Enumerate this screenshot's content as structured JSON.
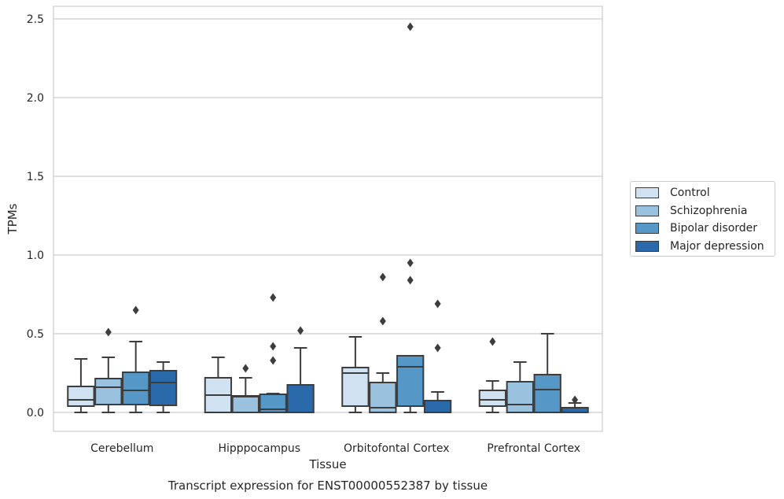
{
  "chart_data": {
    "type": "box",
    "title": "Transcript expression for ENST00000552387 by tissue",
    "xlabel": "Tissue",
    "ylabel": "TPMs",
    "ylim": [
      -0.12,
      2.58
    ],
    "yticks": [
      "0.0",
      "0.5",
      "1.0",
      "1.5",
      "2.0",
      "2.5"
    ],
    "ytick_values": [
      0,
      0.5,
      1.0,
      1.5,
      2.0,
      2.5
    ],
    "categories": [
      "Cerebellum",
      "Hipppocampus",
      "Orbitofontal Cortex",
      "Prefrontal Cortex"
    ],
    "grid": true,
    "legend_position": "right",
    "series": [
      {
        "name": "Control",
        "color": "#d0e1f2",
        "boxes": [
          {
            "min": 0.0,
            "q1": 0.04,
            "median": 0.08,
            "q3": 0.165,
            "max": 0.34,
            "outliers": []
          },
          {
            "min": 0.0,
            "q1": 0.0,
            "median": 0.11,
            "q3": 0.22,
            "max": 0.35,
            "outliers": []
          },
          {
            "min": 0.0,
            "q1": 0.04,
            "median": 0.25,
            "q3": 0.285,
            "max": 0.48,
            "outliers": []
          },
          {
            "min": 0.0,
            "q1": 0.04,
            "median": 0.08,
            "q3": 0.14,
            "max": 0.2,
            "outliers": [
              0.45
            ]
          }
        ]
      },
      {
        "name": "Schizophrenia",
        "color": "#9ac1de",
        "boxes": [
          {
            "min": 0.0,
            "q1": 0.05,
            "median": 0.16,
            "q3": 0.215,
            "max": 0.35,
            "outliers": [
              0.51
            ]
          },
          {
            "min": 0.0,
            "q1": 0.0,
            "median": 0.1,
            "q3": 0.105,
            "max": 0.22,
            "outliers": [
              0.28
            ]
          },
          {
            "min": 0.0,
            "q1": 0.0,
            "median": 0.03,
            "q3": 0.19,
            "max": 0.25,
            "outliers": [
              0.58,
              0.86
            ]
          },
          {
            "min": 0.0,
            "q1": 0.0,
            "median": 0.05,
            "q3": 0.195,
            "max": 0.32,
            "outliers": []
          }
        ]
      },
      {
        "name": "Bipolar disorder",
        "color": "#5597c7",
        "boxes": [
          {
            "min": 0.0,
            "q1": 0.05,
            "median": 0.14,
            "q3": 0.255,
            "max": 0.45,
            "outliers": [
              0.65
            ]
          },
          {
            "min": 0.0,
            "q1": 0.0,
            "median": 0.02,
            "q3": 0.115,
            "max": 0.12,
            "outliers": [
              0.33,
              0.42,
              0.73
            ]
          },
          {
            "min": 0.0,
            "q1": 0.04,
            "median": 0.29,
            "q3": 0.36,
            "max": 0.36,
            "outliers": [
              0.84,
              0.95,
              2.45
            ]
          },
          {
            "min": 0.0,
            "q1": 0.0,
            "median": 0.145,
            "q3": 0.24,
            "max": 0.5,
            "outliers": []
          }
        ]
      },
      {
        "name": "Major depression",
        "color": "#2b6aaa",
        "boxes": [
          {
            "min": 0.0,
            "q1": 0.045,
            "median": 0.19,
            "q3": 0.265,
            "max": 0.32,
            "outliers": []
          },
          {
            "min": 0.0,
            "q1": 0.0,
            "median": 0.0,
            "q3": 0.175,
            "max": 0.41,
            "outliers": [
              0.52
            ]
          },
          {
            "min": 0.0,
            "q1": 0.0,
            "median": 0.0,
            "q3": 0.075,
            "max": 0.13,
            "outliers": [
              0.41,
              0.69
            ]
          },
          {
            "min": 0.0,
            "q1": 0.0,
            "median": 0.0,
            "q3": 0.03,
            "max": 0.06,
            "outliers": [
              0.08
            ]
          }
        ]
      }
    ]
  }
}
